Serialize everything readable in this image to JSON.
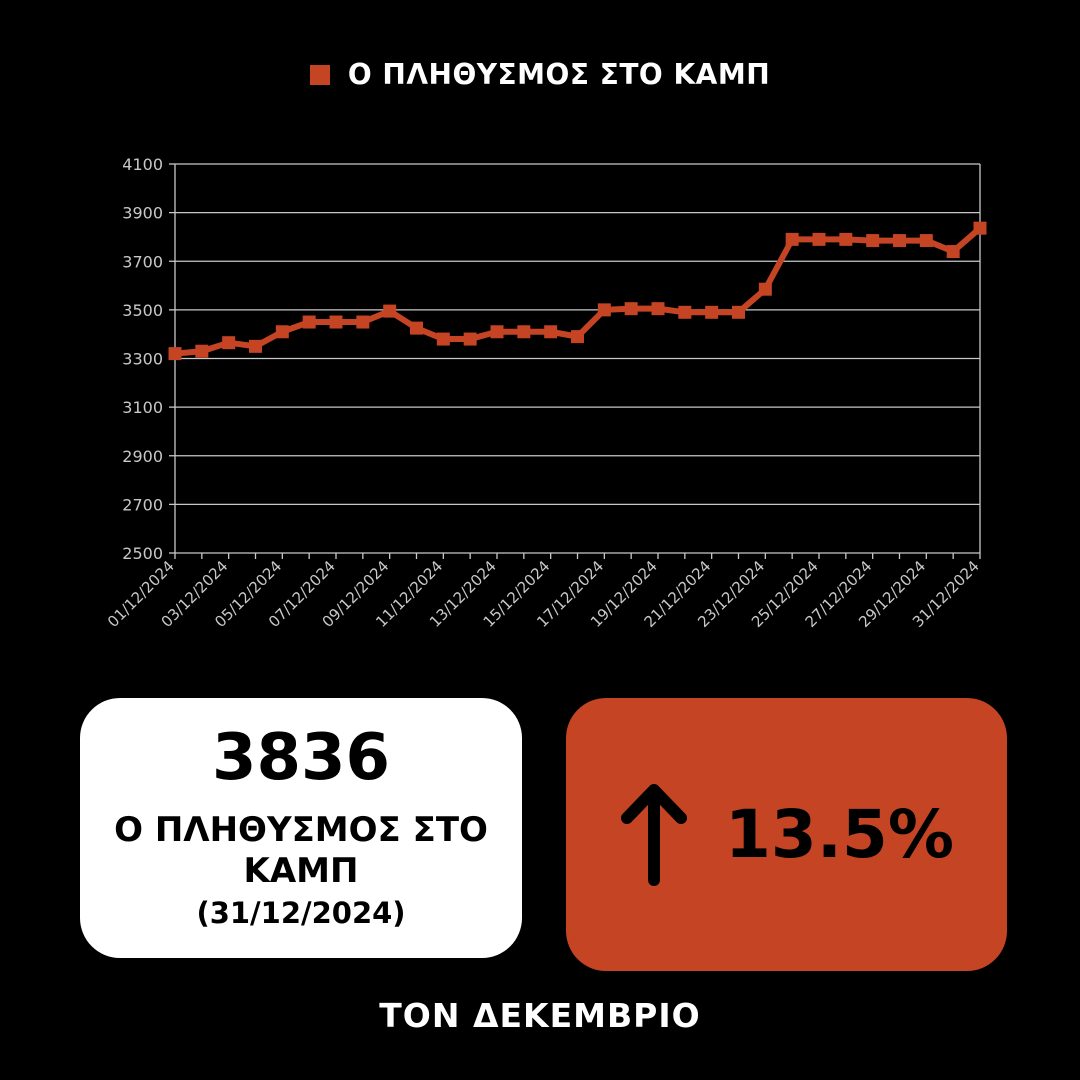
{
  "colors": {
    "background": "#000000",
    "accent": "#c44424",
    "gridline": "#c8c8c8",
    "axis_text": "#c8c8c8",
    "card_white": "#ffffff"
  },
  "legend": {
    "label": "Ο ΠΛΗΘΥΣΜΟΣ ΣΤΟ ΚΑΜΠ"
  },
  "chart_data": {
    "type": "line",
    "series": [
      {
        "name": "Ο ΠΛΗΘΥΣΜΟΣ ΣΤΟ ΚΑΜΠ",
        "x": [
          "01/12/2024",
          "02/12/2024",
          "03/12/2024",
          "04/12/2024",
          "05/12/2024",
          "06/12/2024",
          "07/12/2024",
          "08/12/2024",
          "09/12/2024",
          "10/12/2024",
          "11/12/2024",
          "12/12/2024",
          "13/12/2024",
          "14/12/2024",
          "15/12/2024",
          "16/12/2024",
          "17/12/2024",
          "18/12/2024",
          "19/12/2024",
          "20/12/2024",
          "21/12/2024",
          "22/12/2024",
          "23/12/2024",
          "24/12/2024",
          "25/12/2024",
          "26/12/2024",
          "27/12/2024",
          "28/12/2024",
          "29/12/2024",
          "30/12/2024",
          "31/12/2024"
        ],
        "values": [
          3320,
          3330,
          3365,
          3350,
          3410,
          3450,
          3450,
          3450,
          3495,
          3425,
          3380,
          3380,
          3410,
          3410,
          3410,
          3390,
          3500,
          3505,
          3505,
          3490,
          3490,
          3490,
          3585,
          3790,
          3790,
          3790,
          3785,
          3785,
          3785,
          3740,
          3836
        ]
      }
    ],
    "x_tick_labels": [
      "01/12/2024",
      "03/12/2024",
      "05/12/2024",
      "07/12/2024",
      "09/12/2024",
      "11/12/2024",
      "13/12/2024",
      "15/12/2024",
      "17/12/2024",
      "19/12/2024",
      "21/12/2024",
      "23/12/2024",
      "25/12/2024",
      "27/12/2024",
      "29/12/2024",
      "31/12/2024"
    ],
    "y_ticks": [
      2500,
      2700,
      2900,
      3100,
      3300,
      3500,
      3700,
      3900,
      4100
    ],
    "ylim": [
      2500,
      4100
    ],
    "grid": "horizontal",
    "legend_position": "top-center",
    "xlabel": "",
    "ylabel": ""
  },
  "total_card": {
    "value": "3836",
    "label": "Ο ΠΛΗΘΥΣΜΟΣ ΣΤΟ ΚΑΜΠ",
    "date": "(31/12/2024)"
  },
  "change_card": {
    "icon": "arrow-up-icon",
    "value": "13.5%"
  },
  "footer": {
    "label": "ΤΟΝ ΔΕΚΕΜΒΡΙΟ"
  }
}
